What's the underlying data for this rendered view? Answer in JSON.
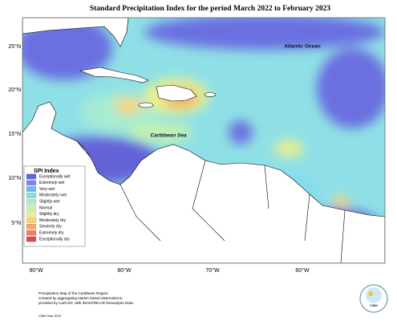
{
  "header": {
    "title": "Standard Precipitation Index for the period March 2022 to February 2023"
  },
  "map": {
    "latitude_labels": [
      "25°N",
      "20°N",
      "15°N",
      "10°N",
      "5°N"
    ],
    "longitude_labels": [
      "90°W",
      "80°W",
      "70°W",
      "60°W"
    ],
    "place_labels": [
      "Atlantic Ocean",
      "Caribbean Sea"
    ]
  },
  "legend": {
    "title": "SPI Index",
    "items": [
      {
        "label": "Exceptionally wet",
        "color": "#6464d8"
      },
      {
        "label": "Extremely wet",
        "color": "#7a86ee"
      },
      {
        "label": "Very wet",
        "color": "#6cb8f2"
      },
      {
        "label": "Moderately wet",
        "color": "#86dcec"
      },
      {
        "label": "Slightly wet",
        "color": "#a6ecd2"
      },
      {
        "label": "Normal",
        "color": "#c4f2ae"
      },
      {
        "label": "Slightly dry",
        "color": "#eef088"
      },
      {
        "label": "Moderately dry",
        "color": "#f8d474"
      },
      {
        "label": "Severely dry",
        "color": "#f7a868"
      },
      {
        "label": "Extremely dry",
        "color": "#f27a62"
      },
      {
        "label": "Exceptionally dry",
        "color": "#e04848"
      }
    ]
  },
  "footer": {
    "lines": [
      "Precipitation Map of the Caribbean Region.",
      "Created by aggregating station based observations,",
      "provided by CariCOF, with INCEPINCAR Reanalysis Data."
    ],
    "credit": "CIMH Mar 2023",
    "logo": "CIMH"
  }
}
